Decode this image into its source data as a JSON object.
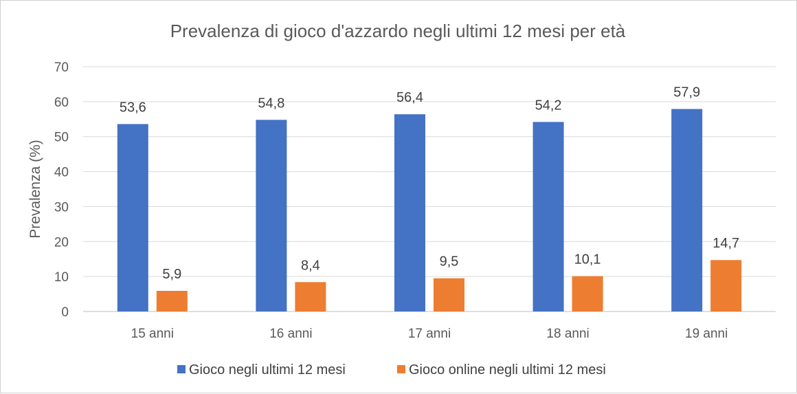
{
  "chart_data": {
    "type": "bar",
    "title": "Prevalenza di gioco d'azzardo negli ultimi 12 mesi per età",
    "xlabel": "",
    "ylabel": "Prevalenza (%)",
    "ylim": [
      0,
      70
    ],
    "yticks": [
      0,
      10,
      20,
      30,
      40,
      50,
      60,
      70
    ],
    "categories": [
      "15 anni",
      "16 anni",
      "17 anni",
      "18 anni",
      "19 anni"
    ],
    "series": [
      {
        "name": "Gioco negli ultimi 12 mesi",
        "values": [
          53.6,
          54.8,
          56.4,
          54.2,
          57.9
        ],
        "labels": [
          "53,6",
          "54,8",
          "56,4",
          "54,2",
          "57,9"
        ],
        "color": "#4472C4"
      },
      {
        "name": "Gioco online negli ultimi 12 mesi",
        "values": [
          5.9,
          8.4,
          9.5,
          10.1,
          14.7
        ],
        "labels": [
          "5,9",
          "8,4",
          "9,5",
          "10,1",
          "14,7"
        ],
        "color": "#ED7D31"
      }
    ],
    "grid": true,
    "legend_position": "bottom"
  }
}
